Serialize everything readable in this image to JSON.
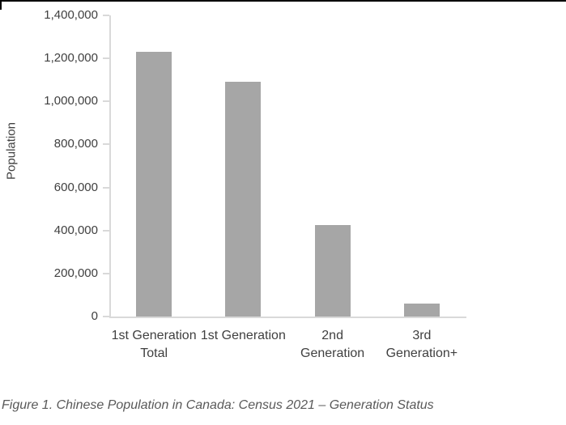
{
  "window": {
    "top_border_color": "#000000"
  },
  "chart_data": {
    "type": "bar",
    "title": "",
    "xlabel": "",
    "ylabel": "Population",
    "categories": [
      "1st Generation Total",
      "1st Generation",
      "2nd Generation",
      "3rd Generation+"
    ],
    "values": [
      1230000,
      1090000,
      425000,
      60000
    ],
    "ylim": [
      0,
      1400000
    ],
    "ytick_step": 200000,
    "ytick_labels_top_to_bottom": [
      "1,400,000",
      "1,200,000",
      "1,000,000",
      "800,000",
      "600,000",
      "400,000",
      "200,000",
      "0"
    ],
    "grid": "off",
    "legend": "none",
    "bar_color": "#a6a6a6",
    "axis_color": "#d9d9d9",
    "tick_text_color": "#404040"
  },
  "caption": {
    "text": "Figure 1. Chinese Population in Canada: Census 2021 – Generation Status"
  }
}
